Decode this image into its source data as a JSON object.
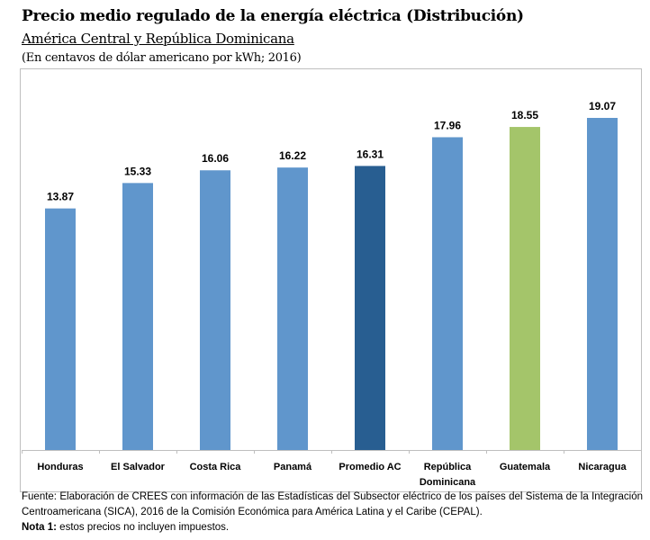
{
  "chart_data": {
    "type": "bar",
    "title": "Precio medio regulado de la energía eléctrica (Distribución)",
    "subtitle": "América Central y República Dominicana",
    "units": "(En centavos de dólar americano por kWh; 2016)",
    "categories": [
      "Honduras",
      "El Salvador",
      "Costa Rica",
      "Panamá",
      "Promedio AC",
      "República Dominicana",
      "Guatemala",
      "Nicaragua"
    ],
    "category_lines": [
      [
        "Honduras"
      ],
      [
        "El Salvador"
      ],
      [
        "Costa Rica"
      ],
      [
        "Panamá"
      ],
      [
        "Promedio AC"
      ],
      [
        "República",
        "Dominicana"
      ],
      [
        "Guatemala"
      ],
      [
        "Nicaragua"
      ]
    ],
    "values": [
      13.87,
      15.33,
      16.06,
      16.22,
      16.31,
      17.96,
      18.55,
      19.07
    ],
    "labels": [
      "13.87",
      "15.33",
      "16.06",
      "16.22",
      "16.31",
      "17.96",
      "18.55",
      "19.07"
    ],
    "colors": [
      "#6096CC",
      "#6096CC",
      "#6096CC",
      "#6096CC",
      "#285E91",
      "#6096CC",
      "#A4C56A",
      "#6096CC"
    ],
    "xlabel": "",
    "ylabel": "",
    "ylim": [
      0,
      19.07
    ],
    "grid": false,
    "legend": "none"
  },
  "footer": {
    "source": "Fuente: Elaboración de CREES con información de las Estadísticas del Subsector eléctrico de los países del Sistema de la Integración Centroamericana (SICA), 2016 de la Comisión Económica para América Latina y el Caribe (CEPAL).",
    "note_label": "Nota 1:",
    "note_text": " estos precios no incluyen impuestos."
  }
}
